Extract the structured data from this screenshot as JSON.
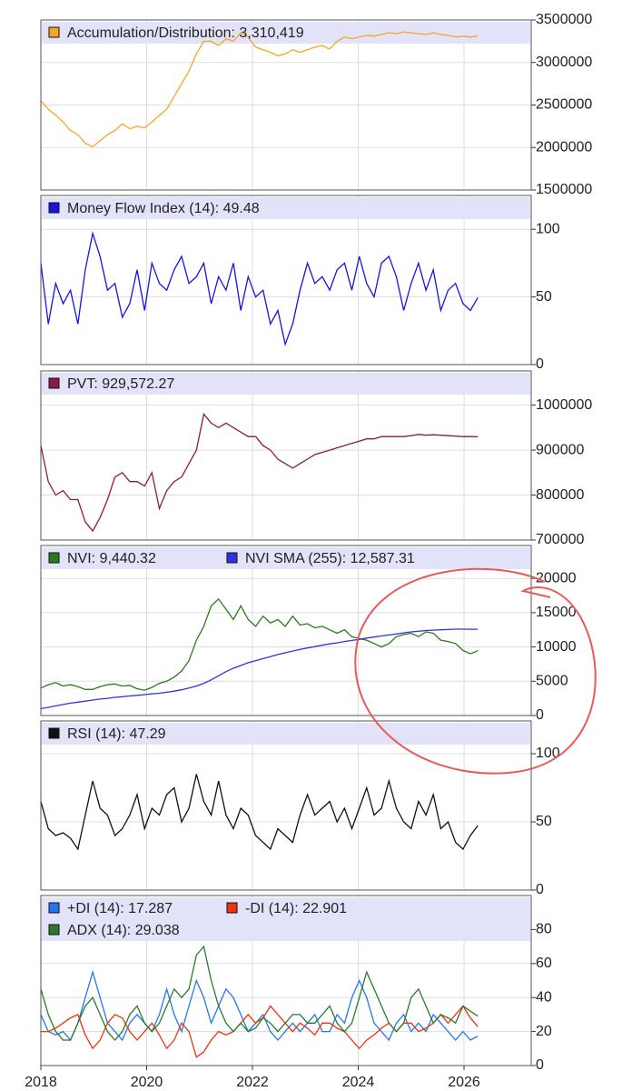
{
  "chart_data": [
    {
      "type": "line",
      "xlim": [
        2018,
        2027.27
      ],
      "ylim": [
        1500000,
        3500000
      ],
      "yticks": [
        1500000,
        2000000,
        2500000,
        3000000,
        3500000
      ],
      "x": [
        2018,
        2018.14,
        2018.28,
        2018.42,
        2018.56,
        2018.7,
        2018.84,
        2018.98,
        2019.12,
        2019.26,
        2019.4,
        2019.54,
        2019.68,
        2019.82,
        2019.96,
        2020.1,
        2020.24,
        2020.38,
        2020.52,
        2020.66,
        2020.8,
        2020.94,
        2021.08,
        2021.22,
        2021.36,
        2021.5,
        2021.64,
        2021.78,
        2021.92,
        2022.06,
        2022.2,
        2022.34,
        2022.48,
        2022.62,
        2022.76,
        2022.9,
        2023.04,
        2023.18,
        2023.32,
        2023.46,
        2023.6,
        2023.74,
        2023.88,
        2024.02,
        2024.16,
        2024.3,
        2024.44,
        2024.58,
        2024.72,
        2024.86,
        2025.0,
        2025.14,
        2025.28,
        2025.42,
        2025.56,
        2025.7,
        2025.84,
        2025.98,
        2026.12,
        2026.26
      ],
      "series": [
        {
          "name": "Accumulation/Distribution: 3,310,419",
          "color": "#f5a623",
          "values": [
            2550000,
            2450000,
            2380000,
            2300000,
            2200000,
            2150000,
            2050000,
            2010000,
            2080000,
            2150000,
            2200000,
            2280000,
            2220000,
            2250000,
            2230000,
            2300000,
            2380000,
            2450000,
            2600000,
            2750000,
            2900000,
            3100000,
            3250000,
            3250000,
            3200000,
            3280000,
            3250000,
            3350000,
            3300000,
            3180000,
            3150000,
            3120000,
            3080000,
            3100000,
            3150000,
            3120000,
            3150000,
            3180000,
            3200000,
            3160000,
            3250000,
            3300000,
            3280000,
            3300000,
            3320000,
            3310000,
            3330000,
            3350000,
            3340000,
            3360000,
            3350000,
            3340000,
            3330000,
            3350000,
            3330000,
            3320000,
            3300000,
            3310000,
            3300000,
            3310419
          ]
        }
      ]
    },
    {
      "type": "line",
      "xlim": [
        2018,
        2027.27
      ],
      "ylim": [
        0,
        125
      ],
      "yticks": [
        0,
        50,
        100
      ],
      "x": [
        2018,
        2018.14,
        2018.28,
        2018.42,
        2018.56,
        2018.7,
        2018.84,
        2018.98,
        2019.12,
        2019.26,
        2019.4,
        2019.54,
        2019.68,
        2019.82,
        2019.96,
        2020.1,
        2020.24,
        2020.38,
        2020.52,
        2020.66,
        2020.8,
        2020.94,
        2021.08,
        2021.22,
        2021.36,
        2021.5,
        2021.64,
        2021.78,
        2021.92,
        2022.06,
        2022.2,
        2022.34,
        2022.48,
        2022.62,
        2022.76,
        2022.9,
        2023.04,
        2023.18,
        2023.32,
        2023.46,
        2023.6,
        2023.74,
        2023.88,
        2024.02,
        2024.16,
        2024.3,
        2024.44,
        2024.58,
        2024.72,
        2024.86,
        2025.0,
        2025.14,
        2025.28,
        2025.42,
        2025.56,
        2025.7,
        2025.84,
        2025.98,
        2026.12,
        2026.26
      ],
      "series": [
        {
          "name": "Money Flow Index (14): 49.48",
          "color": "#1515e0",
          "values": [
            75,
            30,
            60,
            45,
            55,
            30,
            70,
            97,
            80,
            55,
            60,
            35,
            45,
            70,
            40,
            75,
            60,
            55,
            70,
            80,
            60,
            65,
            75,
            45,
            65,
            55,
            75,
            40,
            65,
            50,
            55,
            30,
            40,
            15,
            30,
            55,
            75,
            60,
            65,
            55,
            70,
            75,
            55,
            80,
            60,
            50,
            75,
            80,
            65,
            40,
            60,
            75,
            55,
            70,
            40,
            55,
            60,
            45,
            40,
            49.48
          ]
        }
      ]
    },
    {
      "type": "line",
      "xlim": [
        2018,
        2027.27
      ],
      "ylim": [
        700000,
        1076000
      ],
      "yticks": [
        700000,
        800000,
        900000,
        1000000
      ],
      "x": [
        2018,
        2018.14,
        2018.28,
        2018.42,
        2018.56,
        2018.7,
        2018.84,
        2018.98,
        2019.12,
        2019.26,
        2019.4,
        2019.54,
        2019.68,
        2019.82,
        2019.96,
        2020.1,
        2020.24,
        2020.38,
        2020.52,
        2020.66,
        2020.8,
        2020.94,
        2021.08,
        2021.22,
        2021.36,
        2021.5,
        2021.64,
        2021.78,
        2021.92,
        2022.06,
        2022.2,
        2022.34,
        2022.48,
        2022.62,
        2022.76,
        2022.9,
        2023.04,
        2023.18,
        2023.32,
        2023.46,
        2023.6,
        2023.74,
        2023.88,
        2024.02,
        2024.16,
        2024.3,
        2024.44,
        2024.58,
        2024.72,
        2024.86,
        2025.0,
        2025.14,
        2025.28,
        2025.42,
        2025.56,
        2025.7,
        2025.84,
        2025.98,
        2026.12,
        2026.26
      ],
      "series": [
        {
          "name": "PVT: 929,572.27",
          "color": "#8b1a4a",
          "values": [
            910000,
            830000,
            800000,
            810000,
            790000,
            790000,
            740000,
            720000,
            750000,
            790000,
            840000,
            850000,
            830000,
            830000,
            820000,
            850000,
            770000,
            810000,
            830000,
            840000,
            870000,
            900000,
            980000,
            960000,
            950000,
            960000,
            950000,
            940000,
            930000,
            930000,
            910000,
            900000,
            880000,
            870000,
            860000,
            870000,
            880000,
            890000,
            895000,
            900000,
            905000,
            910000,
            915000,
            920000,
            925000,
            925000,
            930000,
            930000,
            930000,
            930000,
            932000,
            935000,
            933000,
            934000,
            933000,
            932000,
            931000,
            930000,
            930000,
            929572.27
          ]
        }
      ]
    },
    {
      "type": "line",
      "xlim": [
        2018,
        2027.27
      ],
      "ylim": [
        0,
        24800
      ],
      "yticks": [
        0,
        5000,
        10000,
        15000,
        20000
      ],
      "x": [
        2018,
        2018.14,
        2018.28,
        2018.42,
        2018.56,
        2018.7,
        2018.84,
        2018.98,
        2019.12,
        2019.26,
        2019.4,
        2019.54,
        2019.68,
        2019.82,
        2019.96,
        2020.1,
        2020.24,
        2020.38,
        2020.52,
        2020.66,
        2020.8,
        2020.94,
        2021.08,
        2021.22,
        2021.36,
        2021.5,
        2021.64,
        2021.78,
        2021.92,
        2022.06,
        2022.2,
        2022.34,
        2022.48,
        2022.62,
        2022.76,
        2022.9,
        2023.04,
        2023.18,
        2023.32,
        2023.46,
        2023.6,
        2023.74,
        2023.88,
        2024.02,
        2024.16,
        2024.3,
        2024.44,
        2024.58,
        2024.72,
        2024.86,
        2025.0,
        2025.14,
        2025.28,
        2025.42,
        2025.56,
        2025.7,
        2025.84,
        2025.98,
        2026.12,
        2026.26
      ],
      "series": [
        {
          "name": "NVI: 9,440.32",
          "color": "#2a7a1a",
          "values": [
            4000,
            4500,
            4800,
            4300,
            4500,
            4200,
            3800,
            3800,
            4200,
            4500,
            4600,
            4300,
            4400,
            3900,
            3700,
            4100,
            4700,
            5000,
            5600,
            6500,
            8000,
            11000,
            13000,
            16000,
            17000,
            15500,
            14000,
            16000,
            14000,
            13000,
            14500,
            13500,
            14000,
            13000,
            14500,
            13200,
            13400,
            12800,
            13000,
            12500,
            12000,
            12500,
            11500,
            11200,
            11000,
            10500,
            10000,
            10500,
            11500,
            11800,
            12000,
            11500,
            12200,
            12000,
            11000,
            10800,
            10500,
            9500,
            9000,
            9440.32
          ]
        },
        {
          "name": "NVI SMA (255): 12,587.31",
          "color": "#3333dd",
          "values": [
            1000,
            1200,
            1400,
            1600,
            1800,
            1950,
            2100,
            2250,
            2400,
            2500,
            2650,
            2750,
            2850,
            2950,
            3050,
            3150,
            3250,
            3400,
            3550,
            3750,
            4000,
            4300,
            4700,
            5200,
            5800,
            6400,
            6900,
            7300,
            7700,
            8000,
            8300,
            8600,
            8900,
            9150,
            9400,
            9650,
            9850,
            10050,
            10250,
            10450,
            10600,
            10800,
            10950,
            11100,
            11300,
            11450,
            11600,
            11750,
            11900,
            12050,
            12200,
            12300,
            12400,
            12450,
            12500,
            12550,
            12600,
            12600,
            12590,
            12587.31
          ]
        }
      ]
    },
    {
      "type": "line",
      "xlim": [
        2018,
        2027.27
      ],
      "ylim": [
        0,
        124
      ],
      "yticks": [
        0,
        50,
        100
      ],
      "x": [
        2018,
        2018.14,
        2018.28,
        2018.42,
        2018.56,
        2018.7,
        2018.84,
        2018.98,
        2019.12,
        2019.26,
        2019.4,
        2019.54,
        2019.68,
        2019.82,
        2019.96,
        2020.1,
        2020.24,
        2020.38,
        2020.52,
        2020.66,
        2020.8,
        2020.94,
        2021.08,
        2021.22,
        2021.36,
        2021.5,
        2021.64,
        2021.78,
        2021.92,
        2022.06,
        2022.2,
        2022.34,
        2022.48,
        2022.62,
        2022.76,
        2022.9,
        2023.04,
        2023.18,
        2023.32,
        2023.46,
        2023.6,
        2023.74,
        2023.88,
        2024.02,
        2024.16,
        2024.3,
        2024.44,
        2024.58,
        2024.72,
        2024.86,
        2025.0,
        2025.14,
        2025.28,
        2025.42,
        2025.56,
        2025.7,
        2025.84,
        2025.98,
        2026.12,
        2026.26
      ],
      "series": [
        {
          "name": "RSI (14): 47.29",
          "color": "#111111",
          "values": [
            65,
            45,
            40,
            42,
            38,
            30,
            55,
            80,
            60,
            55,
            40,
            45,
            55,
            70,
            45,
            60,
            55,
            70,
            75,
            50,
            60,
            85,
            65,
            55,
            80,
            55,
            45,
            60,
            55,
            40,
            35,
            30,
            45,
            40,
            35,
            55,
            70,
            55,
            60,
            65,
            50,
            60,
            45,
            60,
            75,
            55,
            60,
            80,
            60,
            50,
            45,
            65,
            55,
            70,
            45,
            50,
            35,
            30,
            40,
            47.29
          ]
        }
      ]
    },
    {
      "type": "line",
      "xlim": [
        2018,
        2027.27
      ],
      "ylim": [
        0,
        100
      ],
      "yticks": [
        0,
        20,
        40,
        60,
        80
      ],
      "xticks": [
        2018,
        2020,
        2022,
        2024,
        2026
      ],
      "x": [
        2018,
        2018.14,
        2018.28,
        2018.42,
        2018.56,
        2018.7,
        2018.84,
        2018.98,
        2019.12,
        2019.26,
        2019.4,
        2019.54,
        2019.68,
        2019.82,
        2019.96,
        2020.1,
        2020.24,
        2020.38,
        2020.52,
        2020.66,
        2020.8,
        2020.94,
        2021.08,
        2021.22,
        2021.36,
        2021.5,
        2021.64,
        2021.78,
        2021.92,
        2022.06,
        2022.2,
        2022.34,
        2022.48,
        2022.62,
        2022.76,
        2022.9,
        2023.04,
        2023.18,
        2023.32,
        2023.46,
        2023.6,
        2023.74,
        2023.88,
        2024.02,
        2024.16,
        2024.3,
        2024.44,
        2024.58,
        2024.72,
        2024.86,
        2025.0,
        2025.14,
        2025.28,
        2025.42,
        2025.56,
        2025.7,
        2025.84,
        2025.98,
        2026.12,
        2026.26
      ],
      "series": [
        {
          "name": "+DI (14): 17.287",
          "color": "#2277ee",
          "values": [
            30,
            20,
            18,
            20,
            15,
            25,
            40,
            55,
            40,
            25,
            20,
            15,
            25,
            30,
            25,
            20,
            30,
            45,
            30,
            20,
            35,
            50,
            40,
            25,
            35,
            45,
            40,
            30,
            20,
            25,
            30,
            20,
            15,
            20,
            25,
            20,
            25,
            30,
            20,
            20,
            30,
            25,
            40,
            50,
            40,
            25,
            20,
            15,
            25,
            30,
            20,
            25,
            20,
            30,
            25,
            20,
            15,
            20,
            15,
            17.287
          ]
        },
        {
          "name": "-DI (14): 22.901",
          "color": "#ee3311",
          "values": [
            20,
            20,
            22,
            25,
            28,
            30,
            18,
            10,
            15,
            25,
            30,
            28,
            20,
            15,
            20,
            25,
            18,
            10,
            15,
            25,
            20,
            5,
            8,
            15,
            20,
            18,
            20,
            25,
            30,
            25,
            28,
            35,
            30,
            25,
            20,
            25,
            22,
            18,
            25,
            25,
            22,
            20,
            15,
            10,
            15,
            18,
            22,
            25,
            20,
            25,
            25,
            20,
            22,
            25,
            30,
            25,
            30,
            35,
            28,
            22.901
          ]
        },
        {
          "name": "ADX (14): 29.038",
          "color": "#2a7a2a",
          "values": [
            45,
            30,
            20,
            15,
            15,
            25,
            35,
            40,
            30,
            20,
            15,
            20,
            30,
            35,
            25,
            20,
            25,
            35,
            45,
            40,
            45,
            65,
            70,
            50,
            35,
            25,
            20,
            25,
            20,
            22,
            28,
            25,
            20,
            25,
            30,
            30,
            25,
            25,
            30,
            35,
            25,
            20,
            25,
            40,
            55,
            45,
            35,
            25,
            20,
            25,
            40,
            45,
            35,
            25,
            30,
            28,
            25,
            35,
            32,
            29.038
          ]
        }
      ]
    }
  ]
}
